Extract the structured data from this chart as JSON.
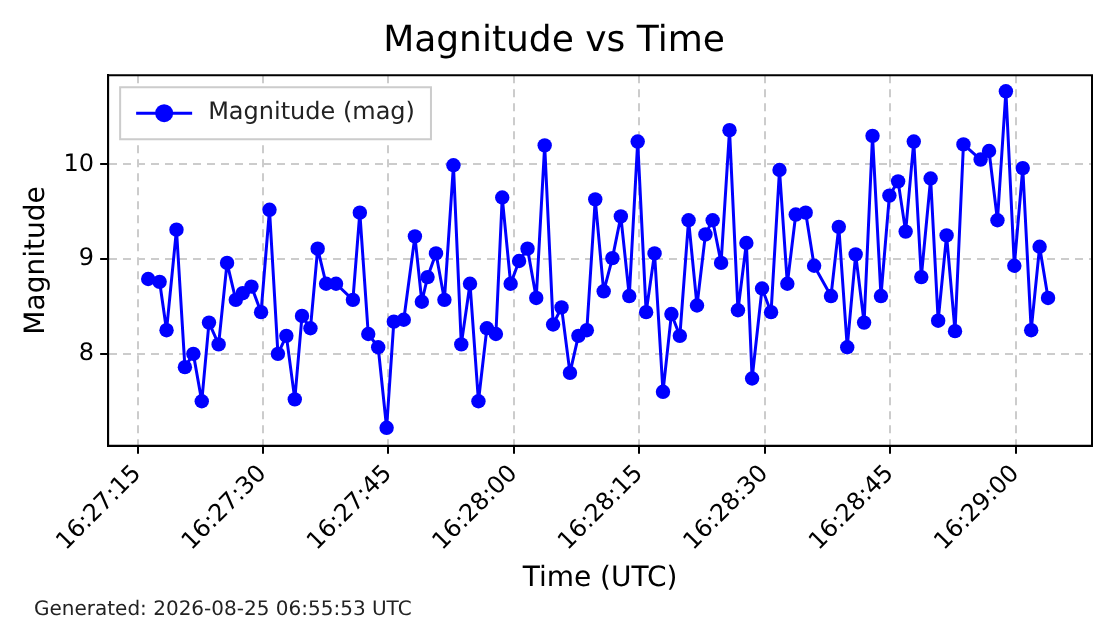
{
  "chart_data": {
    "type": "line",
    "title": "Magnitude vs Time",
    "xlabel": "Time (UTC)",
    "ylabel": "Magnitude",
    "annotations": [
      "Generated: 2026-08-25 06:55:53 UTC"
    ],
    "x": [
      16.45452,
      16.4549,
      16.45513,
      16.45546,
      16.45574,
      16.45602,
      16.4563,
      16.45654,
      16.45686,
      16.45714,
      16.45743,
      16.45766,
      16.45795,
      16.45827,
      16.45855,
      16.45883,
      16.45911,
      16.45939,
      16.45963,
      16.45991,
      16.46015,
      16.46043,
      16.46076,
      16.46132,
      16.46155,
      16.46183,
      16.46216,
      16.46244,
      16.46268,
      16.46301,
      16.46338,
      16.46361,
      16.4638,
      16.46408,
      16.46436,
      16.46466,
      16.46492,
      16.46521,
      16.46549,
      16.46577,
      16.46607,
      16.46628,
      16.46656,
      16.46684,
      16.46712,
      16.46741,
      16.46769,
      16.46797,
      16.46825,
      16.46853,
      16.46881,
      16.46909,
      16.46937,
      16.46965,
      16.46994,
      16.47022,
      16.4705,
      16.47078,
      16.47106,
      16.47134,
      16.47162,
      16.4719,
      16.47218,
      16.47247,
      16.47275,
      16.47303,
      16.47327,
      16.47355,
      16.47383,
      16.47411,
      16.47439,
      16.47458,
      16.47491,
      16.47521,
      16.47549,
      16.47575,
      16.47603,
      16.47636,
      16.47664,
      16.4772,
      16.47746,
      16.47774,
      16.47802,
      16.4783,
      16.47858,
      16.47886,
      16.47914,
      16.47943,
      16.47968,
      16.47995,
      16.4802,
      16.48051,
      16.48076,
      16.48104,
      16.48132,
      16.4816,
      16.48217,
      16.48245,
      16.48273,
      16.48301,
      16.48329,
      16.48357,
      16.48385,
      16.48413,
      16.48441
    ],
    "series": [
      {
        "name": "Magnitude (mag)",
        "color": "#0000ff",
        "values": [
          8.79,
          8.76,
          8.25,
          9.31,
          7.86,
          8.0,
          7.5,
          8.33,
          8.1,
          8.96,
          8.57,
          8.64,
          8.71,
          8.44,
          9.52,
          8.0,
          8.19,
          7.52,
          8.4,
          8.27,
          9.11,
          8.74,
          8.74,
          8.57,
          9.49,
          8.21,
          8.07,
          7.22,
          8.34,
          8.36,
          9.24,
          8.55,
          8.81,
          9.06,
          8.57,
          9.99,
          8.1,
          8.74,
          7.5,
          8.27,
          8.21,
          9.65,
          8.74,
          8.98,
          9.11,
          8.59,
          10.2,
          8.31,
          8.49,
          7.8,
          8.19,
          8.25,
          9.63,
          8.66,
          9.01,
          9.45,
          8.61,
          10.24,
          8.44,
          9.06,
          7.6,
          8.42,
          8.19,
          9.41,
          8.51,
          9.26,
          9.41,
          8.96,
          10.36,
          8.46,
          9.17,
          7.74,
          8.69,
          8.44,
          9.94,
          8.74,
          9.47,
          9.49,
          8.93,
          8.61,
          9.34,
          8.07,
          9.05,
          8.33,
          10.3,
          8.61,
          9.67,
          9.82,
          9.29,
          10.24,
          8.81,
          9.85,
          8.35,
          9.25,
          8.24,
          10.21,
          10.05,
          10.14,
          9.41,
          10.77,
          8.93,
          9.96,
          8.25,
          9.13,
          8.59
        ]
      }
    ],
    "xlim": [
      16.45319,
      16.48587
    ],
    "xticks": [
      {
        "value": 16.454167,
        "label": "16:27:15"
      },
      {
        "value": 16.458333,
        "label": "16:27:30"
      },
      {
        "value": 16.4625,
        "label": "16:27:45"
      },
      {
        "value": 16.466667,
        "label": "16:28:00"
      },
      {
        "value": 16.470833,
        "label": "16:28:15"
      },
      {
        "value": 16.475,
        "label": "16:28:30"
      },
      {
        "value": 16.479167,
        "label": "16:28:45"
      },
      {
        "value": 16.483333,
        "label": "16:29:00"
      }
    ],
    "ylim": [
      7.03,
      10.94
    ],
    "yticks": [
      8,
      9,
      10
    ],
    "grid": true,
    "legend": "top left",
    "marker": "circle",
    "line_style": "solid"
  }
}
